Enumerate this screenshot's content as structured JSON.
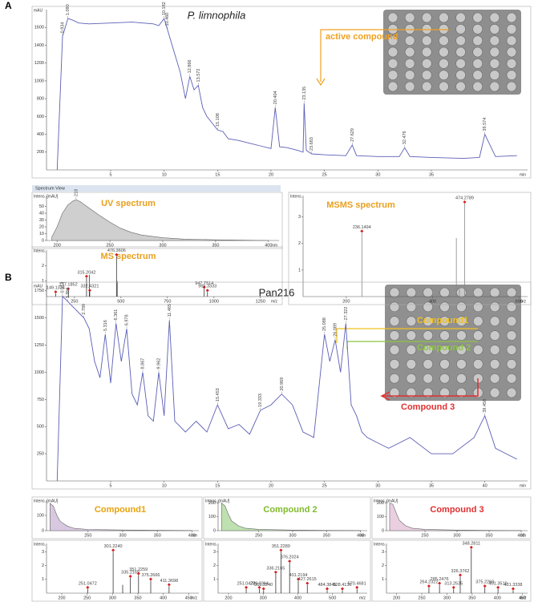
{
  "figure": {
    "panel_a": "A",
    "panel_b": "B",
    "active": "active compound",
    "spectrum_view": "Spectrum View",
    "b_compound1": "Compound1",
    "b_compound2": "Compound 2",
    "b_compound3": "Compound 3"
  },
  "chart_data": [
    {
      "type": "line",
      "title": "P. limnophila",
      "y_label": "mAU",
      "x_unit": "min",
      "color": "#5b5fb5",
      "x": [
        0,
        0.5,
        1,
        1.5,
        2,
        3,
        5,
        7,
        9,
        9.5,
        10,
        10.3,
        11,
        11.5,
        12,
        12.4,
        12.8,
        13.2,
        13.6,
        14,
        15,
        15.5,
        16,
        17,
        18,
        19,
        20,
        20.4,
        20.8,
        21.5,
        22.5,
        23,
        23.1,
        23.3,
        23.8,
        25,
        27,
        27.6,
        28,
        30,
        32,
        32.5,
        33,
        35,
        38,
        39.5,
        40,
        41,
        43
      ],
      "values": [
        0,
        1500,
        1700,
        1680,
        1650,
        1640,
        1650,
        1660,
        1640,
        1620,
        1700,
        1580,
        1300,
        1100,
        800,
        1050,
        900,
        950,
        700,
        600,
        450,
        430,
        350,
        330,
        300,
        270,
        240,
        700,
        260,
        250,
        220,
        200,
        750,
        220,
        180,
        170,
        160,
        280,
        160,
        150,
        150,
        250,
        150,
        140,
        130,
        140,
        400,
        150,
        160
      ],
      "peak_x": [
        0.5,
        1,
        10,
        10.3,
        12.4,
        13.2,
        15,
        20.4,
        23.1,
        23.8,
        27.6,
        32.5,
        40
      ],
      "peak_labels": [
        "0.934",
        "1.090",
        "10.182",
        "10.460",
        "12.866",
        "13.572",
        "15.108",
        "20.404",
        "23.135",
        "23.683",
        "27.629",
        "32.476",
        "39.574"
      ],
      "xlim": [
        -1,
        44
      ],
      "ylim": [
        0,
        1800
      ],
      "xticks": [
        5,
        10,
        15,
        20,
        25,
        30,
        35
      ],
      "yticks": [
        200,
        400,
        600,
        800,
        1000,
        1200,
        1400,
        1600
      ]
    },
    {
      "type": "area",
      "title": "UV spectrum",
      "y_label": "Intens. [mAU]",
      "x_unit": "nm",
      "color": "#cfcfcf",
      "x": [
        195,
        200,
        205,
        210,
        215,
        218,
        222,
        230,
        240,
        250,
        260,
        270,
        280,
        300,
        320,
        350,
        400
      ],
      "values": [
        5,
        20,
        40,
        52,
        58,
        60,
        57,
        48,
        37,
        27,
        18,
        12,
        8,
        4,
        2,
        1,
        0
      ],
      "peak_x": [
        218
      ],
      "peak_labels": [
        "218"
      ],
      "xlim": [
        190,
        410
      ],
      "ylim": [
        0,
        66
      ],
      "xticks": [
        200,
        250,
        300,
        350,
        400
      ],
      "yticks": [
        0,
        10,
        20,
        30,
        40,
        50
      ]
    },
    {
      "type": "stem",
      "title": "MS spectrum",
      "y_label": "Intens.",
      "x_unit": "m/z",
      "color": "#333333",
      "x": [
        149.1324,
        217.1852,
        315.2042,
        330,
        332.4321,
        476.3606,
        480,
        947.7514,
        965.3333
      ],
      "values": [
        0.2,
        0.4,
        1.2,
        1.4,
        0.3,
        2.6,
        1.0,
        0.5,
        0.3
      ],
      "peak_labels": [
        "149.1324",
        "217.1852",
        "315.2042",
        null,
        "332.4321",
        "476.3606",
        null,
        "947.7514",
        "965.3333"
      ],
      "xlim": [
        100,
        1350
      ],
      "ylim": [
        0,
        3
      ],
      "xticks": [
        250,
        500,
        750,
        1000,
        1250
      ],
      "yticks": [
        1,
        2
      ]
    },
    {
      "type": "stem",
      "title": "MSMS spectrum",
      "y_label": "Intens.",
      "x_unit": "m/z",
      "color": "#888888",
      "x": [
        236.1494,
        455,
        462,
        474.2789,
        478
      ],
      "values": [
        2.4,
        2.2,
        0.3,
        3.5,
        0.2
      ],
      "peak_labels": [
        "236.1494",
        null,
        null,
        "474.2789",
        null
      ],
      "xlim": [
        100,
        620
      ],
      "ylim": [
        0,
        3.8
      ],
      "xticks": [
        200,
        400,
        600
      ],
      "yticks": [
        1,
        2,
        3
      ]
    },
    {
      "type": "line",
      "title": "Pan216",
      "y_label": "mAU",
      "x_unit": "min",
      "color": "#5b5fb5",
      "x": [
        0,
        0.5,
        1,
        1.5,
        2,
        2.5,
        3,
        3.5,
        4,
        4.5,
        5,
        5.5,
        6,
        6.5,
        7,
        7.5,
        8,
        8.5,
        9,
        9.5,
        10,
        10.5,
        11,
        11.5,
        12,
        13,
        14,
        15,
        16,
        17,
        18,
        19,
        20,
        21,
        22,
        23,
        24,
        25,
        25.5,
        26,
        26.5,
        27,
        27.5,
        28,
        28.5,
        29,
        30,
        31,
        33,
        35,
        37,
        39,
        40,
        41,
        42,
        43
      ],
      "values": [
        0,
        1700,
        1650,
        1600,
        1550,
        1500,
        1400,
        1100,
        950,
        1350,
        900,
        1450,
        1100,
        1400,
        800,
        700,
        1000,
        600,
        550,
        1000,
        600,
        1480,
        550,
        500,
        450,
        550,
        450,
        700,
        480,
        520,
        430,
        650,
        700,
        800,
        700,
        450,
        400,
        1350,
        1100,
        1300,
        1000,
        1450,
        700,
        600,
        450,
        400,
        350,
        300,
        400,
        250,
        250,
        400,
        600,
        300,
        250,
        200
      ],
      "peak_x": [
        0.5,
        1,
        2.5,
        4.5,
        5.5,
        6.5,
        8,
        9.5,
        10.5,
        15,
        19,
        21,
        25,
        26,
        27,
        40
      ],
      "peak_labels": [
        "0.913",
        "1.356",
        "2.789",
        "5.316",
        "6.361",
        "6.978",
        "8.867",
        "9.962",
        "11.465",
        "15.453",
        "19.333",
        "20.969",
        "25.088",
        "26.089",
        "27.322",
        "39.458"
      ],
      "xlim": [
        -1,
        44
      ],
      "ylim": [
        0,
        1800
      ],
      "xticks": [
        5,
        10,
        15,
        20,
        25,
        30,
        35,
        40
      ],
      "yticks": [
        250,
        500,
        750,
        1000,
        1250,
        1500,
        1750
      ]
    },
    {
      "type": "area",
      "title": "Compound1",
      "y_label": "Intens. [mAU]",
      "x_unit": "nm",
      "color": "#d8c8e0",
      "x": [
        195,
        200,
        205,
        210,
        220,
        230,
        250,
        300,
        350,
        400
      ],
      "values": [
        180,
        160,
        100,
        60,
        30,
        15,
        8,
        4,
        2,
        1
      ],
      "xlim": [
        190,
        410
      ],
      "ylim": [
        0,
        200
      ],
      "xticks": [
        250,
        300,
        350,
        400
      ],
      "yticks": [
        0,
        100
      ]
    },
    {
      "type": "area",
      "title": "Compound 2",
      "y_label": "Intens. [mAU]",
      "x_unit": "nm",
      "color": "#bfe0b0",
      "x": [
        195,
        200,
        205,
        210,
        220,
        230,
        250,
        300,
        350,
        400
      ],
      "values": [
        200,
        180,
        120,
        70,
        35,
        18,
        9,
        4,
        2,
        1
      ],
      "xlim": [
        190,
        410
      ],
      "ylim": [
        0,
        220
      ],
      "xticks": [
        250,
        300,
        350,
        400
      ],
      "yticks": [
        0,
        100,
        200
      ]
    },
    {
      "type": "area",
      "title": "Compound 3",
      "y_label": "Intens. [mAU]",
      "x_unit": "nm",
      "color": "#e9cfe0",
      "x": [
        195,
        200,
        205,
        210,
        220,
        230,
        250,
        300,
        350,
        400
      ],
      "values": [
        200,
        190,
        130,
        75,
        35,
        18,
        9,
        4,
        2,
        1
      ],
      "xlim": [
        190,
        410
      ],
      "ylim": [
        0,
        220
      ],
      "xticks": [
        250,
        300,
        350,
        400
      ],
      "yticks": [
        0,
        100,
        200
      ]
    },
    {
      "type": "stem",
      "y_label": "Intens.",
      "x_unit": "m/z",
      "color": "#333333",
      "x": [
        251.0472,
        301.224,
        320,
        335.2169,
        351.2259,
        375.2666,
        411.3698
      ],
      "values": [
        0.3,
        3,
        0.6,
        1.1,
        1.3,
        0.9,
        0.5
      ],
      "peak_labels": [
        "251.0472",
        "301.2240",
        null,
        "335.2169",
        "351.2259",
        "375.2666",
        "411.3698"
      ],
      "xlim": [
        170,
        470
      ],
      "ylim": [
        0,
        3.6
      ],
      "xticks": [
        200,
        250,
        300,
        350,
        400,
        450
      ],
      "yticks": [
        1,
        2,
        3
      ]
    },
    {
      "type": "stem",
      "y_label": "Intens.",
      "x_unit": "m/z",
      "color": "#333333",
      "x": [
        251.0472,
        289.0364,
        301.224,
        336.2165,
        351.2289,
        376.2024,
        401.2194,
        427.2615,
        484.3846,
        528.4136,
        570.4681
      ],
      "values": [
        0.3,
        0.3,
        0.2,
        1.4,
        3.0,
        2.2,
        0.9,
        0.6,
        0.2,
        0.2,
        0.3
      ],
      "peak_labels": [
        "251.0472",
        "289.0364",
        "301.2240",
        "336.2165",
        "351.2289",
        "376.2024",
        "401.2194",
        "427.2615",
        "484.3846",
        "528.4136",
        "570.4681"
      ],
      "xlim": [
        170,
        600
      ],
      "ylim": [
        0,
        3.6
      ],
      "xticks": [
        200,
        300,
        400,
        500
      ],
      "yticks": [
        1,
        2,
        3
      ]
    },
    {
      "type": "stem",
      "y_label": "Intens.",
      "x_unit": "m/z",
      "color": "#333333",
      "x": [
        264.2322,
        285.2476,
        313.2535,
        326.3762,
        348.2811,
        375.226,
        401.351,
        431.3338
      ],
      "values": [
        0.4,
        0.6,
        0.3,
        1.2,
        3.2,
        0.4,
        0.3,
        0.2
      ],
      "peak_labels": [
        "264.2322",
        "285.2476",
        "313.2535",
        "326.3762",
        "348.2811",
        "375.2260",
        "401.3510",
        "431.3338"
      ],
      "xlim": [
        180,
        460
      ],
      "ylim": [
        0,
        3.6
      ],
      "xticks": [
        200,
        250,
        300,
        350,
        400,
        450
      ],
      "yticks": [
        1,
        2,
        3
      ]
    }
  ]
}
